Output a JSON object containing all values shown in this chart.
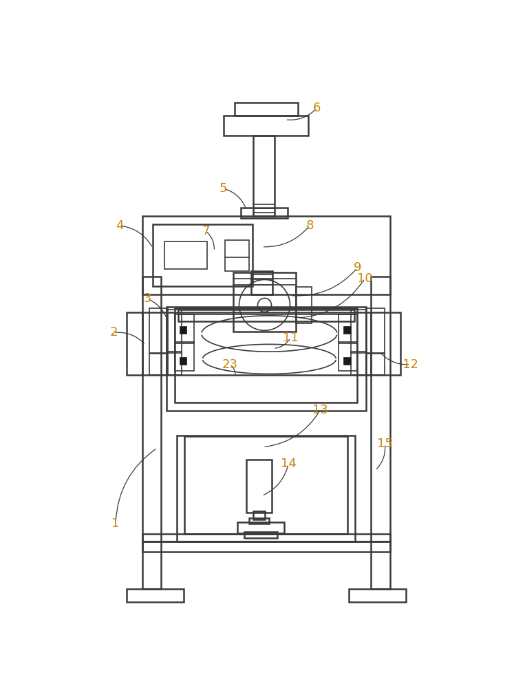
{
  "bg_color": "#ffffff",
  "line_color": "#3a3a3a",
  "lw_main": 1.8,
  "lw_thin": 1.2,
  "label_color": "#c8860a",
  "label_fontsize": 13,
  "fig_width": 7.63,
  "fig_height": 10.0,
  "labels": {
    "1": [
      92,
      168,
      170,
      310
    ],
    "2": [
      88,
      528,
      148,
      505
    ],
    "3": [
      152,
      592,
      192,
      543
    ],
    "4": [
      100,
      730,
      162,
      688
    ],
    "5": [
      295,
      800,
      338,
      762
    ],
    "6": [
      472,
      952,
      412,
      930
    ],
    "7": [
      262,
      720,
      278,
      682
    ],
    "8": [
      458,
      730,
      368,
      690
    ],
    "9": [
      548,
      650,
      422,
      598
    ],
    "10": [
      562,
      630,
      438,
      556
    ],
    "11": [
      422,
      518,
      390,
      498
    ],
    "12": [
      648,
      468,
      590,
      492
    ],
    "13": [
      478,
      382,
      370,
      312
    ],
    "14": [
      418,
      280,
      368,
      220
    ],
    "15": [
      600,
      318,
      582,
      268
    ],
    "23": [
      308,
      468,
      318,
      446
    ]
  }
}
